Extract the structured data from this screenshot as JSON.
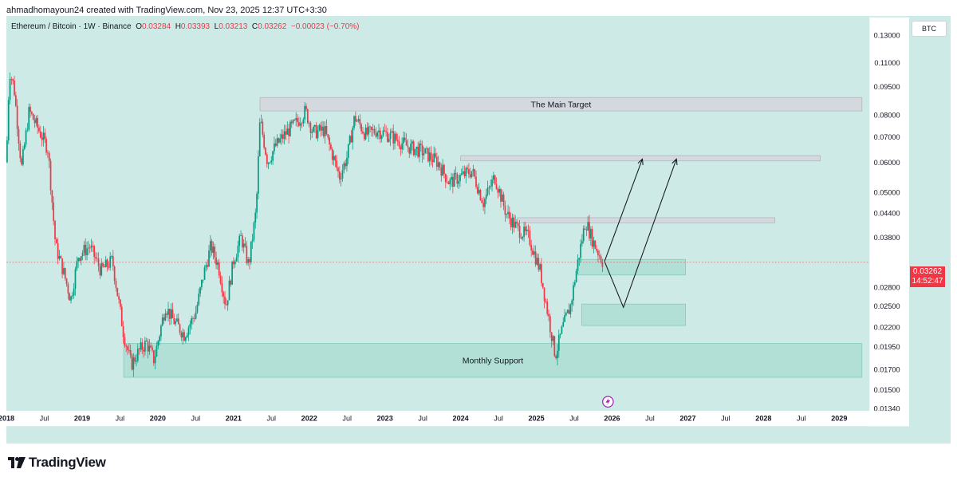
{
  "credit": "ahmadhomayoun24 created with TradingView.com, Nov 23, 2025 12:37 UTC+3:30",
  "header": {
    "symbol": "Ethereum / Bitcoin · 1W · Binance",
    "o_label": "O",
    "o_value": "0.03284",
    "h_label": "H",
    "h_value": "0.03393",
    "l_label": "L",
    "l_value": "0.03213",
    "c_label": "C",
    "c_value": "0.03262",
    "change": "−0.00023 (−0.70%)"
  },
  "currency_button": "BTC",
  "last_price": {
    "price": "0.03262",
    "countdown": "14:52:47"
  },
  "logo_text": "TradingView",
  "colors": {
    "up": "#089981",
    "down": "#f23645",
    "background": "#cdeae6",
    "zone": "#a6dccf",
    "target": "#d4d6dc"
  },
  "chart_data": {
    "type": "candlestick",
    "title": "",
    "y_scale": "log",
    "ylim": [
      0.0132,
      0.145
    ],
    "y_ticks": [
      0.13,
      0.11,
      0.095,
      0.08,
      0.07,
      0.06,
      0.05,
      0.044,
      0.038,
      0.028,
      0.025,
      0.022,
      0.0195,
      0.017,
      0.015,
      0.0134
    ],
    "y_tick_labels": [
      "0.13000",
      "0.11000",
      "0.09500",
      "0.08000",
      "0.07000",
      "0.06000",
      "0.05000",
      "0.04400",
      "0.03800",
      "0.02800",
      "0.02500",
      "0.02200",
      "0.01950",
      "0.01700",
      "0.01500",
      "0.01340"
    ],
    "x_range": [
      2018.0,
      2029.4
    ],
    "x_ticks": [
      {
        "t": 2018.0,
        "label": "2018",
        "bold": true
      },
      {
        "t": 2018.5,
        "label": "Jul",
        "bold": false
      },
      {
        "t": 2019.0,
        "label": "2019",
        "bold": true
      },
      {
        "t": 2019.5,
        "label": "Jul",
        "bold": false
      },
      {
        "t": 2020.0,
        "label": "2020",
        "bold": true
      },
      {
        "t": 2020.5,
        "label": "Jul",
        "bold": false
      },
      {
        "t": 2021.0,
        "label": "2021",
        "bold": true
      },
      {
        "t": 2021.5,
        "label": "Jul",
        "bold": false
      },
      {
        "t": 2022.0,
        "label": "2022",
        "bold": true
      },
      {
        "t": 2022.5,
        "label": "Jul",
        "bold": false
      },
      {
        "t": 2023.0,
        "label": "2023",
        "bold": true
      },
      {
        "t": 2023.5,
        "label": "Jul",
        "bold": false
      },
      {
        "t": 2024.0,
        "label": "2024",
        "bold": true
      },
      {
        "t": 2024.5,
        "label": "Jul",
        "bold": false
      },
      {
        "t": 2025.0,
        "label": "2025",
        "bold": true
      },
      {
        "t": 2025.5,
        "label": "Jul",
        "bold": false
      },
      {
        "t": 2026.0,
        "label": "2026",
        "bold": true
      },
      {
        "t": 2026.5,
        "label": "Jul",
        "bold": false
      },
      {
        "t": 2027.0,
        "label": "2027",
        "bold": true
      },
      {
        "t": 2027.5,
        "label": "Jul",
        "bold": false
      },
      {
        "t": 2028.0,
        "label": "2028",
        "bold": true
      },
      {
        "t": 2028.5,
        "label": "Jul",
        "bold": false
      },
      {
        "t": 2029.0,
        "label": "2029",
        "bold": true
      }
    ],
    "price_path": [
      [
        2018.0,
        0.06
      ],
      [
        2018.04,
        0.105
      ],
      [
        2018.1,
        0.095
      ],
      [
        2018.2,
        0.058
      ],
      [
        2018.3,
        0.082
      ],
      [
        2018.4,
        0.075
      ],
      [
        2018.55,
        0.065
      ],
      [
        2018.65,
        0.036
      ],
      [
        2018.75,
        0.031
      ],
      [
        2018.85,
        0.026
      ],
      [
        2018.95,
        0.034
      ],
      [
        2019.1,
        0.036
      ],
      [
        2019.25,
        0.031
      ],
      [
        2019.4,
        0.033
      ],
      [
        2019.55,
        0.021
      ],
      [
        2019.65,
        0.0175
      ],
      [
        2019.75,
        0.019
      ],
      [
        2019.85,
        0.02
      ],
      [
        2019.95,
        0.018
      ],
      [
        2020.1,
        0.025
      ],
      [
        2020.2,
        0.023
      ],
      [
        2020.35,
        0.021
      ],
      [
        2020.5,
        0.024
      ],
      [
        2020.6,
        0.03
      ],
      [
        2020.7,
        0.036
      ],
      [
        2020.8,
        0.032
      ],
      [
        2020.9,
        0.025
      ],
      [
        2021.0,
        0.033
      ],
      [
        2021.1,
        0.038
      ],
      [
        2021.2,
        0.032
      ],
      [
        2021.3,
        0.045
      ],
      [
        2021.35,
        0.078
      ],
      [
        2021.45,
        0.06
      ],
      [
        2021.55,
        0.066
      ],
      [
        2021.7,
        0.072
      ],
      [
        2021.85,
        0.077
      ],
      [
        2021.95,
        0.082
      ],
      [
        2022.05,
        0.072
      ],
      [
        2022.2,
        0.073
      ],
      [
        2022.4,
        0.055
      ],
      [
        2022.5,
        0.062
      ],
      [
        2022.6,
        0.079
      ],
      [
        2022.75,
        0.071
      ],
      [
        2022.9,
        0.073
      ],
      [
        2023.1,
        0.07
      ],
      [
        2023.3,
        0.066
      ],
      [
        2023.5,
        0.064
      ],
      [
        2023.7,
        0.06
      ],
      [
        2023.85,
        0.053
      ],
      [
        2024.0,
        0.055
      ],
      [
        2024.15,
        0.057
      ],
      [
        2024.3,
        0.047
      ],
      [
        2024.45,
        0.055
      ],
      [
        2024.6,
        0.044
      ],
      [
        2024.75,
        0.04
      ],
      [
        2024.9,
        0.038
      ],
      [
        2025.05,
        0.031
      ],
      [
        2025.15,
        0.024
      ],
      [
        2025.25,
        0.0185
      ],
      [
        2025.35,
        0.022
      ],
      [
        2025.45,
        0.025
      ],
      [
        2025.55,
        0.033
      ],
      [
        2025.65,
        0.042
      ],
      [
        2025.75,
        0.037
      ],
      [
        2025.88,
        0.0326
      ]
    ],
    "annotations": [
      {
        "type": "zone",
        "label": "The Main Target",
        "t0": 2021.35,
        "t1": 2029.3,
        "y0": 0.082,
        "y1": 0.089
      },
      {
        "type": "zone",
        "label": "",
        "t0": 2024.0,
        "t1": 2028.75,
        "y0": 0.0605,
        "y1": 0.0625
      },
      {
        "type": "zone",
        "label": "",
        "t0": 2024.75,
        "t1": 2028.15,
        "y0": 0.0415,
        "y1": 0.0428
      },
      {
        "type": "zone",
        "label": "",
        "t0": 2025.55,
        "t1": 2026.97,
        "y0": 0.0302,
        "y1": 0.0332
      },
      {
        "type": "zone",
        "label": "",
        "t0": 2025.6,
        "t1": 2026.97,
        "y0": 0.0222,
        "y1": 0.0253
      },
      {
        "type": "zone",
        "label": "Monthly Support",
        "t0": 2019.55,
        "t1": 2029.3,
        "y0": 0.0162,
        "y1": 0.0199
      }
    ],
    "projection_paths": [
      [
        [
          2025.9,
          0.0328
        ],
        [
          2026.4,
          0.0612
        ]
      ],
      [
        [
          2025.9,
          0.0328
        ],
        [
          2026.15,
          0.0248
        ],
        [
          2026.85,
          0.0612
        ]
      ]
    ],
    "last_price": 0.03262
  }
}
